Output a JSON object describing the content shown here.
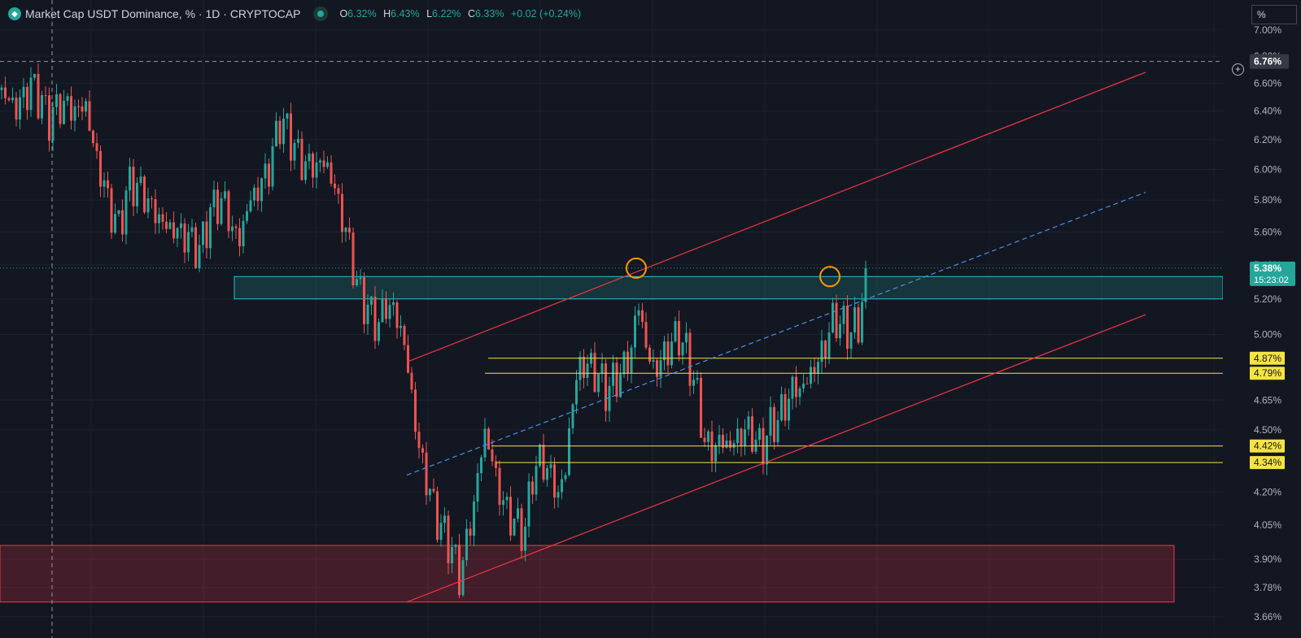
{
  "legend": {
    "logo_icon": "tether-diamond-icon",
    "title": "Market Cap USDT Dominance, % · 1D · CRYPTOCAP",
    "status_icon": "market-status-dot-icon",
    "open_label": "O",
    "open": "6.32%",
    "high_label": "H",
    "high": "6.43%",
    "low_label": "L",
    "low": "6.22%",
    "close_label": "C",
    "close": "6.33%",
    "change": "+0.02 (+0.24%)"
  },
  "price_scale": {
    "unit": "%"
  },
  "colors": {
    "background": "#131722",
    "up": "#26a69a",
    "down": "#ef5350",
    "trendline": "#f23645",
    "midline": "#2962ff",
    "level": "#f5e342",
    "marker": "#ff9800"
  },
  "chart_data": {
    "type": "candlestick",
    "title": "Market Cap USDT Dominance, %",
    "interval": "1D",
    "exchange": "CRYPTOCAP",
    "y_scale": "log",
    "ylim": [
      3.63,
      7.1
    ],
    "y_ticks": [
      "7.00%",
      "6.80%",
      "6.60%",
      "6.40%",
      "6.20%",
      "6.00%",
      "5.80%",
      "5.60%",
      "5.40%",
      "5.20%",
      "5.00%",
      "4.87%",
      "4.79%",
      "4.65%",
      "4.50%",
      "4.42%",
      "4.34%",
      "4.20%",
      "4.05%",
      "3.90%",
      "3.78%",
      "3.66%"
    ],
    "series_shape": [
      [
        0,
        6.55
      ],
      [
        20,
        6.42
      ],
      [
        40,
        6.6
      ],
      [
        60,
        6.35
      ],
      [
        75,
        6.45
      ],
      [
        95,
        6.4
      ],
      [
        105,
        6.45
      ],
      [
        115,
        6.15
      ],
      [
        125,
        5.95
      ],
      [
        135,
        5.75
      ],
      [
        145,
        5.62
      ],
      [
        160,
        5.92
      ],
      [
        175,
        5.85
      ],
      [
        190,
        5.72
      ],
      [
        205,
        5.63
      ],
      [
        220,
        5.6
      ],
      [
        235,
        5.55
      ],
      [
        245,
        5.48
      ],
      [
        260,
        5.75
      ],
      [
        275,
        5.8
      ],
      [
        285,
        5.62
      ],
      [
        295,
        5.55
      ],
      [
        305,
        5.78
      ],
      [
        315,
        5.85
      ],
      [
        330,
        6.0
      ],
      [
        345,
        6.35
      ],
      [
        360,
        6.18
      ],
      [
        370,
        6.05
      ],
      [
        385,
        6.02
      ],
      [
        400,
        6.05
      ],
      [
        410,
        5.9
      ],
      [
        420,
        5.7
      ],
      [
        430,
        5.5
      ],
      [
        440,
        5.25
      ],
      [
        455,
        5.12
      ],
      [
        465,
        5.05
      ],
      [
        475,
        5.18
      ],
      [
        485,
        5.12
      ],
      [
        495,
        5.0
      ],
      [
        505,
        4.7
      ],
      [
        515,
        4.4
      ],
      [
        525,
        4.25
      ],
      [
        535,
        4.1
      ],
      [
        545,
        4.02
      ],
      [
        555,
        3.95
      ],
      [
        565,
        3.82
      ],
      [
        575,
        4.0
      ],
      [
        585,
        4.2
      ],
      [
        595,
        4.5
      ],
      [
        605,
        4.35
      ],
      [
        615,
        4.18
      ],
      [
        625,
        4.1
      ],
      [
        635,
        4.05
      ],
      [
        645,
        4.02
      ],
      [
        655,
        4.3
      ],
      [
        665,
        4.35
      ],
      [
        675,
        4.3
      ],
      [
        685,
        4.18
      ],
      [
        695,
        4.3
      ],
      [
        705,
        4.7
      ],
      [
        715,
        4.85
      ],
      [
        725,
        4.82
      ],
      [
        735,
        4.78
      ],
      [
        745,
        4.7
      ],
      [
        755,
        4.75
      ],
      [
        765,
        4.8
      ],
      [
        775,
        4.9
      ],
      [
        785,
        5.18
      ],
      [
        795,
        4.9
      ],
      [
        805,
        4.8
      ],
      [
        815,
        4.88
      ],
      [
        825,
        4.95
      ],
      [
        835,
        5.0
      ],
      [
        845,
        4.88
      ],
      [
        855,
        4.72
      ],
      [
        865,
        4.45
      ],
      [
        875,
        4.4
      ],
      [
        885,
        4.45
      ],
      [
        895,
        4.42
      ],
      [
        905,
        4.45
      ],
      [
        915,
        4.5
      ],
      [
        925,
        4.48
      ],
      [
        935,
        4.4
      ],
      [
        945,
        4.5
      ],
      [
        955,
        4.55
      ],
      [
        965,
        4.62
      ],
      [
        975,
        4.72
      ],
      [
        985,
        4.7
      ],
      [
        995,
        4.78
      ],
      [
        1005,
        4.85
      ],
      [
        1015,
        4.95
      ],
      [
        1025,
        5.1
      ],
      [
        1035,
        5.05
      ],
      [
        1045,
        5.02
      ],
      [
        1055,
        5.05
      ],
      [
        1065,
        5.38
      ]
    ],
    "last_price": "5.38%",
    "countdown": "15:23:02",
    "crosshair_price": "6.76%",
    "price_levels": [
      "4.87%",
      "4.79%",
      "4.42%",
      "4.34%"
    ],
    "zones": [
      {
        "name": "resistance-zone",
        "top": 5.33,
        "bottom": 5.2
      },
      {
        "name": "support-zone",
        "top": 3.96,
        "bottom": 3.72
      }
    ],
    "channel": {
      "upper": [
        [
          500,
          4.85
        ],
        [
          1408,
          6.68
        ]
      ],
      "lower": [
        [
          500,
          3.72
        ],
        [
          1408,
          5.11
        ]
      ],
      "mid": [
        [
          500,
          4.28
        ],
        [
          1408,
          5.85
        ]
      ]
    },
    "markers": [
      [
        782,
        5.38
      ],
      [
        1020,
        5.33
      ]
    ]
  }
}
